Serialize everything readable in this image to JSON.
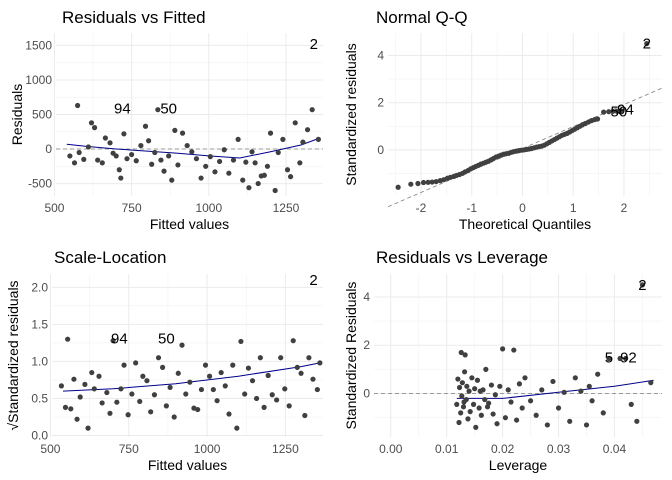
{
  "chart_data": [
    {
      "type": "scatter",
      "title": "Residuals vs Fitted",
      "xlabel": "Fitted values",
      "ylabel": "Residuals",
      "xlim": [
        505,
        1370
      ],
      "ylim": [
        -680,
        1680
      ],
      "xticks": [
        500,
        750,
        1000,
        1250
      ],
      "yticks": [
        -500,
        0,
        500,
        1000,
        1500
      ],
      "grid": true,
      "reference_line": 0,
      "points": [
        [
          550,
          -100
        ],
        [
          565,
          -200
        ],
        [
          575,
          630
        ],
        [
          580,
          -50
        ],
        [
          595,
          -150
        ],
        [
          610,
          30
        ],
        [
          620,
          380
        ],
        [
          630,
          310
        ],
        [
          640,
          -160
        ],
        [
          655,
          -200
        ],
        [
          665,
          160
        ],
        [
          680,
          90
        ],
        [
          690,
          -60
        ],
        [
          700,
          -100
        ],
        [
          710,
          -300
        ],
        [
          715,
          -420
        ],
        [
          725,
          220
        ],
        [
          735,
          -140
        ],
        [
          750,
          -80
        ],
        [
          765,
          -170
        ],
        [
          780,
          50
        ],
        [
          795,
          330
        ],
        [
          805,
          120
        ],
        [
          815,
          -220
        ],
        [
          825,
          -50
        ],
        [
          835,
          570
        ],
        [
          845,
          -160
        ],
        [
          855,
          -320
        ],
        [
          870,
          -100
        ],
        [
          880,
          -450
        ],
        [
          890,
          270
        ],
        [
          900,
          -230
        ],
        [
          915,
          230
        ],
        [
          930,
          50
        ],
        [
          945,
          -40
        ],
        [
          960,
          -140
        ],
        [
          975,
          -420
        ],
        [
          990,
          -250
        ],
        [
          1005,
          -110
        ],
        [
          1020,
          -330
        ],
        [
          1035,
          -180
        ],
        [
          1050,
          -10
        ],
        [
          1065,
          -350
        ],
        [
          1080,
          -160
        ],
        [
          1095,
          140
        ],
        [
          1110,
          -450
        ],
        [
          1120,
          -190
        ],
        [
          1130,
          -560
        ],
        [
          1140,
          -40
        ],
        [
          1150,
          -200
        ],
        [
          1160,
          -500
        ],
        [
          1170,
          -390
        ],
        [
          1180,
          -380
        ],
        [
          1190,
          -250
        ],
        [
          1200,
          230
        ],
        [
          1215,
          -600
        ],
        [
          1225,
          -50
        ],
        [
          1240,
          140
        ],
        [
          1255,
          -300
        ],
        [
          1265,
          -400
        ],
        [
          1280,
          380
        ],
        [
          1295,
          -200
        ],
        [
          1305,
          100
        ],
        [
          1320,
          280
        ],
        [
          1335,
          570
        ],
        [
          1355,
          140
        ]
      ],
      "smooth": [
        [
          540,
          70
        ],
        [
          600,
          40
        ],
        [
          700,
          0
        ],
        [
          800,
          -30
        ],
        [
          900,
          -60
        ],
        [
          1000,
          -100
        ],
        [
          1100,
          -130
        ],
        [
          1200,
          -40
        ],
        [
          1300,
          60
        ],
        [
          1360,
          160
        ]
      ],
      "labeled_points": [
        {
          "text": "94",
          "x": 720,
          "y": 590
        },
        {
          "text": "50",
          "x": 870,
          "y": 590
        },
        {
          "text": "2",
          "x": 1340,
          "y": 1520
        }
      ]
    },
    {
      "type": "scatter",
      "title": "Normal Q-Q",
      "xlabel": "Theoretical Quantiles",
      "ylabel": "Standardized residuals",
      "xlim": [
        -2.65,
        2.75
      ],
      "ylim": [
        -1.95,
        4.95
      ],
      "xticks": [
        -2,
        -1,
        0,
        1,
        2
      ],
      "yticks": [
        0,
        2,
        4
      ],
      "grid": true,
      "reference_line": {
        "slope": 0.93,
        "intercept": 0.06
      },
      "points": [
        [
          -2.45,
          -1.58
        ],
        [
          -2.2,
          -1.45
        ],
        [
          -2.06,
          -1.42
        ],
        [
          -1.95,
          -1.38
        ],
        [
          -1.86,
          -1.37
        ],
        [
          -1.78,
          -1.36
        ],
        [
          -1.7,
          -1.34
        ],
        [
          -1.62,
          -1.3
        ],
        [
          -1.55,
          -1.26
        ],
        [
          -1.48,
          -1.2
        ],
        [
          -1.42,
          -1.16
        ],
        [
          -1.35,
          -1.12
        ],
        [
          -1.3,
          -1.08
        ],
        [
          -1.24,
          -1.04
        ],
        [
          -1.18,
          -0.99
        ],
        [
          -1.13,
          -0.93
        ],
        [
          -1.07,
          -0.87
        ],
        [
          -1.02,
          -0.8
        ],
        [
          -0.97,
          -0.75
        ],
        [
          -0.92,
          -0.7
        ],
        [
          -0.87,
          -0.65
        ],
        [
          -0.82,
          -0.6
        ],
        [
          -0.77,
          -0.56
        ],
        [
          -0.72,
          -0.52
        ],
        [
          -0.67,
          -0.48
        ],
        [
          -0.62,
          -0.42
        ],
        [
          -0.57,
          -0.36
        ],
        [
          -0.52,
          -0.3
        ],
        [
          -0.47,
          -0.26
        ],
        [
          -0.42,
          -0.22
        ],
        [
          -0.37,
          -0.18
        ],
        [
          -0.32,
          -0.16
        ],
        [
          -0.27,
          -0.14
        ],
        [
          -0.22,
          -0.1
        ],
        [
          -0.17,
          -0.07
        ],
        [
          -0.12,
          -0.05
        ],
        [
          -0.07,
          -0.03
        ],
        [
          -0.02,
          -0.01
        ],
        [
          0.03,
          0.0
        ],
        [
          0.08,
          0.02
        ],
        [
          0.13,
          0.04
        ],
        [
          0.18,
          0.06
        ],
        [
          0.23,
          0.09
        ],
        [
          0.28,
          0.12
        ],
        [
          0.33,
          0.14
        ],
        [
          0.38,
          0.16
        ],
        [
          0.43,
          0.2
        ],
        [
          0.48,
          0.26
        ],
        [
          0.53,
          0.32
        ],
        [
          0.58,
          0.38
        ],
        [
          0.63,
          0.44
        ],
        [
          0.68,
          0.5
        ],
        [
          0.73,
          0.56
        ],
        [
          0.78,
          0.62
        ],
        [
          0.83,
          0.66
        ],
        [
          0.88,
          0.7
        ],
        [
          0.93,
          0.76
        ],
        [
          0.98,
          0.82
        ],
        [
          1.03,
          0.88
        ],
        [
          1.08,
          0.94
        ],
        [
          1.13,
          1.0
        ],
        [
          1.18,
          1.06
        ],
        [
          1.24,
          1.12
        ],
        [
          1.3,
          1.18
        ],
        [
          1.36,
          1.24
        ],
        [
          1.42,
          1.28
        ],
        [
          1.48,
          1.31
        ],
        [
          1.6,
          1.6
        ],
        [
          1.7,
          1.62
        ],
        [
          1.78,
          1.63
        ],
        [
          1.86,
          1.64
        ],
        [
          1.94,
          1.66
        ],
        [
          2.45,
          4.5
        ]
      ],
      "labeled_points": [
        {
          "text": "50",
          "x": 1.9,
          "y": 1.63
        },
        {
          "text": "94",
          "x": 2.03,
          "y": 1.72
        },
        {
          "text": "2",
          "x": 2.45,
          "y": 4.5
        }
      ]
    },
    {
      "type": "scatter",
      "title": "Scale-Location",
      "xlabel": "Fitted values",
      "ylabel": "√Standardized residuals",
      "xlim": [
        505,
        1370
      ],
      "ylim": [
        -0.02,
        2.18
      ],
      "xticks": [
        500,
        750,
        1000,
        1250
      ],
      "yticks": [
        0.0,
        0.5,
        1.0,
        1.5,
        2.0
      ],
      "grid": true,
      "points": [
        [
          535,
          0.67
        ],
        [
          548,
          0.38
        ],
        [
          555,
          1.3
        ],
        [
          565,
          0.36
        ],
        [
          575,
          0.76
        ],
        [
          585,
          0.22
        ],
        [
          595,
          0.52
        ],
        [
          610,
          0.69
        ],
        [
          620,
          0.1
        ],
        [
          632,
          0.85
        ],
        [
          640,
          0.63
        ],
        [
          655,
          0.8
        ],
        [
          665,
          0.44
        ],
        [
          680,
          0.58
        ],
        [
          690,
          0.3
        ],
        [
          700,
          1.28
        ],
        [
          712,
          0.45
        ],
        [
          725,
          0.63
        ],
        [
          735,
          0.95
        ],
        [
          748,
          0.28
        ],
        [
          760,
          0.56
        ],
        [
          772,
          0.98
        ],
        [
          785,
          0.46
        ],
        [
          795,
          0.8
        ],
        [
          808,
          0.74
        ],
        [
          820,
          0.32
        ],
        [
          832,
          0.55
        ],
        [
          845,
          1.05
        ],
        [
          858,
          0.92
        ],
        [
          870,
          0.4
        ],
        [
          882,
          0.65
        ],
        [
          895,
          0.25
        ],
        [
          908,
          0.84
        ],
        [
          920,
          1.22
        ],
        [
          932,
          0.56
        ],
        [
          945,
          0.72
        ],
        [
          958,
          0.37
        ],
        [
          970,
          0.35
        ],
        [
          982,
          0.62
        ],
        [
          995,
          0.95
        ],
        [
          1008,
          0.8
        ],
        [
          1020,
          0.62
        ],
        [
          1032,
          0.47
        ],
        [
          1045,
          0.85
        ],
        [
          1058,
          0.67
        ],
        [
          1070,
          0.29
        ],
        [
          1082,
          0.95
        ],
        [
          1095,
          0.1
        ],
        [
          1108,
          1.27
        ],
        [
          1120,
          0.56
        ],
        [
          1132,
          0.91
        ],
        [
          1145,
          0.74
        ],
        [
          1158,
          0.5
        ],
        [
          1170,
          1.05
        ],
        [
          1182,
          0.38
        ],
        [
          1195,
          0.81
        ],
        [
          1208,
          0.55
        ],
        [
          1222,
          0.48
        ],
        [
          1235,
          1.05
        ],
        [
          1248,
          0.63
        ],
        [
          1262,
          0.4
        ],
        [
          1275,
          1.28
        ],
        [
          1288,
          0.92
        ],
        [
          1300,
          0.84
        ],
        [
          1312,
          0.27
        ],
        [
          1325,
          1.05
        ],
        [
          1338,
          0.76
        ],
        [
          1352,
          0.62
        ],
        [
          1360,
          0.98
        ]
      ],
      "smooth": [
        [
          540,
          0.6
        ],
        [
          700,
          0.63
        ],
        [
          900,
          0.7
        ],
        [
          1100,
          0.8
        ],
        [
          1300,
          0.93
        ],
        [
          1360,
          0.98
        ]
      ],
      "labeled_points": [
        {
          "text": "94",
          "x": 720,
          "y": 1.31
        },
        {
          "text": "50",
          "x": 870,
          "y": 1.31
        },
        {
          "text": "2",
          "x": 1340,
          "y": 2.1
        }
      ]
    },
    {
      "type": "scatter",
      "title": "Residuals vs Leverage",
      "xlabel": "Leverage",
      "ylabel": "Standardized Residuals",
      "xlim": [
        -0.003,
        0.0485
      ],
      "ylim": [
        -1.8,
        4.95
      ],
      "xticks": [
        0.0,
        0.01,
        0.02,
        0.03,
        0.04
      ],
      "xtick_labels": [
        "0.00",
        "0.01",
        "0.02",
        "0.03",
        "0.04"
      ],
      "yticks": [
        0,
        2,
        4
      ],
      "grid": true,
      "reference_line": 0,
      "points": [
        [
          0.0118,
          -0.45
        ],
        [
          0.012,
          0.6
        ],
        [
          0.0122,
          -1.2
        ],
        [
          0.0123,
          0.25
        ],
        [
          0.0125,
          -0.8
        ],
        [
          0.0126,
          1.7
        ],
        [
          0.0127,
          -0.1
        ],
        [
          0.0128,
          0.45
        ],
        [
          0.013,
          -0.55
        ],
        [
          0.0131,
          -0.35
        ],
        [
          0.0132,
          0.9
        ],
        [
          0.0133,
          1.6
        ],
        [
          0.0135,
          -0.25
        ],
        [
          0.0136,
          0.3
        ],
        [
          0.0138,
          -1.05
        ],
        [
          0.014,
          0.1
        ],
        [
          0.0142,
          -0.75
        ],
        [
          0.0145,
          0.65
        ],
        [
          0.0148,
          -0.45
        ],
        [
          0.015,
          0.2
        ],
        [
          0.0152,
          -1.4
        ],
        [
          0.0155,
          0.55
        ],
        [
          0.0158,
          -0.6
        ],
        [
          0.016,
          0.1
        ],
        [
          0.0162,
          -0.9
        ],
        [
          0.0165,
          0.15
        ],
        [
          0.0168,
          -0.25
        ],
        [
          0.017,
          1.0
        ],
        [
          0.0173,
          -0.55
        ],
        [
          0.0175,
          -0.4
        ],
        [
          0.018,
          0.35
        ],
        [
          0.0183,
          -0.85
        ],
        [
          0.0187,
          -0.05
        ],
        [
          0.019,
          -1.25
        ],
        [
          0.0195,
          0.3
        ],
        [
          0.02,
          1.85
        ],
        [
          0.0205,
          -1.0
        ],
        [
          0.021,
          0.15
        ],
        [
          0.0215,
          -0.35
        ],
        [
          0.022,
          1.8
        ],
        [
          0.0225,
          -1.1
        ],
        [
          0.023,
          0.4
        ],
        [
          0.0235,
          -0.6
        ],
        [
          0.024,
          0.65
        ],
        [
          0.025,
          -0.3
        ],
        [
          0.026,
          -0.9
        ],
        [
          0.027,
          0.15
        ],
        [
          0.028,
          -1.3
        ],
        [
          0.029,
          0.5
        ],
        [
          0.03,
          -0.6
        ],
        [
          0.031,
          0.05
        ],
        [
          0.032,
          -1.15
        ],
        [
          0.033,
          0.65
        ],
        [
          0.034,
          0.1
        ],
        [
          0.035,
          -1.3
        ],
        [
          0.0355,
          0.3
        ],
        [
          0.036,
          -0.3
        ],
        [
          0.037,
          0.8
        ],
        [
          0.038,
          -0.8
        ],
        [
          0.039,
          1.45
        ],
        [
          0.041,
          1.45
        ],
        [
          0.042,
          1.45
        ],
        [
          0.043,
          -0.45
        ],
        [
          0.044,
          -1.15
        ],
        [
          0.045,
          4.5
        ],
        [
          0.0465,
          0.45
        ]
      ],
      "smooth": [
        [
          0.0118,
          -0.2
        ],
        [
          0.02,
          -0.2
        ],
        [
          0.03,
          0.05
        ],
        [
          0.04,
          0.3
        ],
        [
          0.047,
          0.55
        ]
      ],
      "labeled_points": [
        {
          "text": "5",
          "x": 0.039,
          "y": 1.5
        },
        {
          "text": "92",
          "x": 0.0425,
          "y": 1.5
        },
        {
          "text": "2",
          "x": 0.045,
          "y": 4.5
        }
      ]
    }
  ]
}
